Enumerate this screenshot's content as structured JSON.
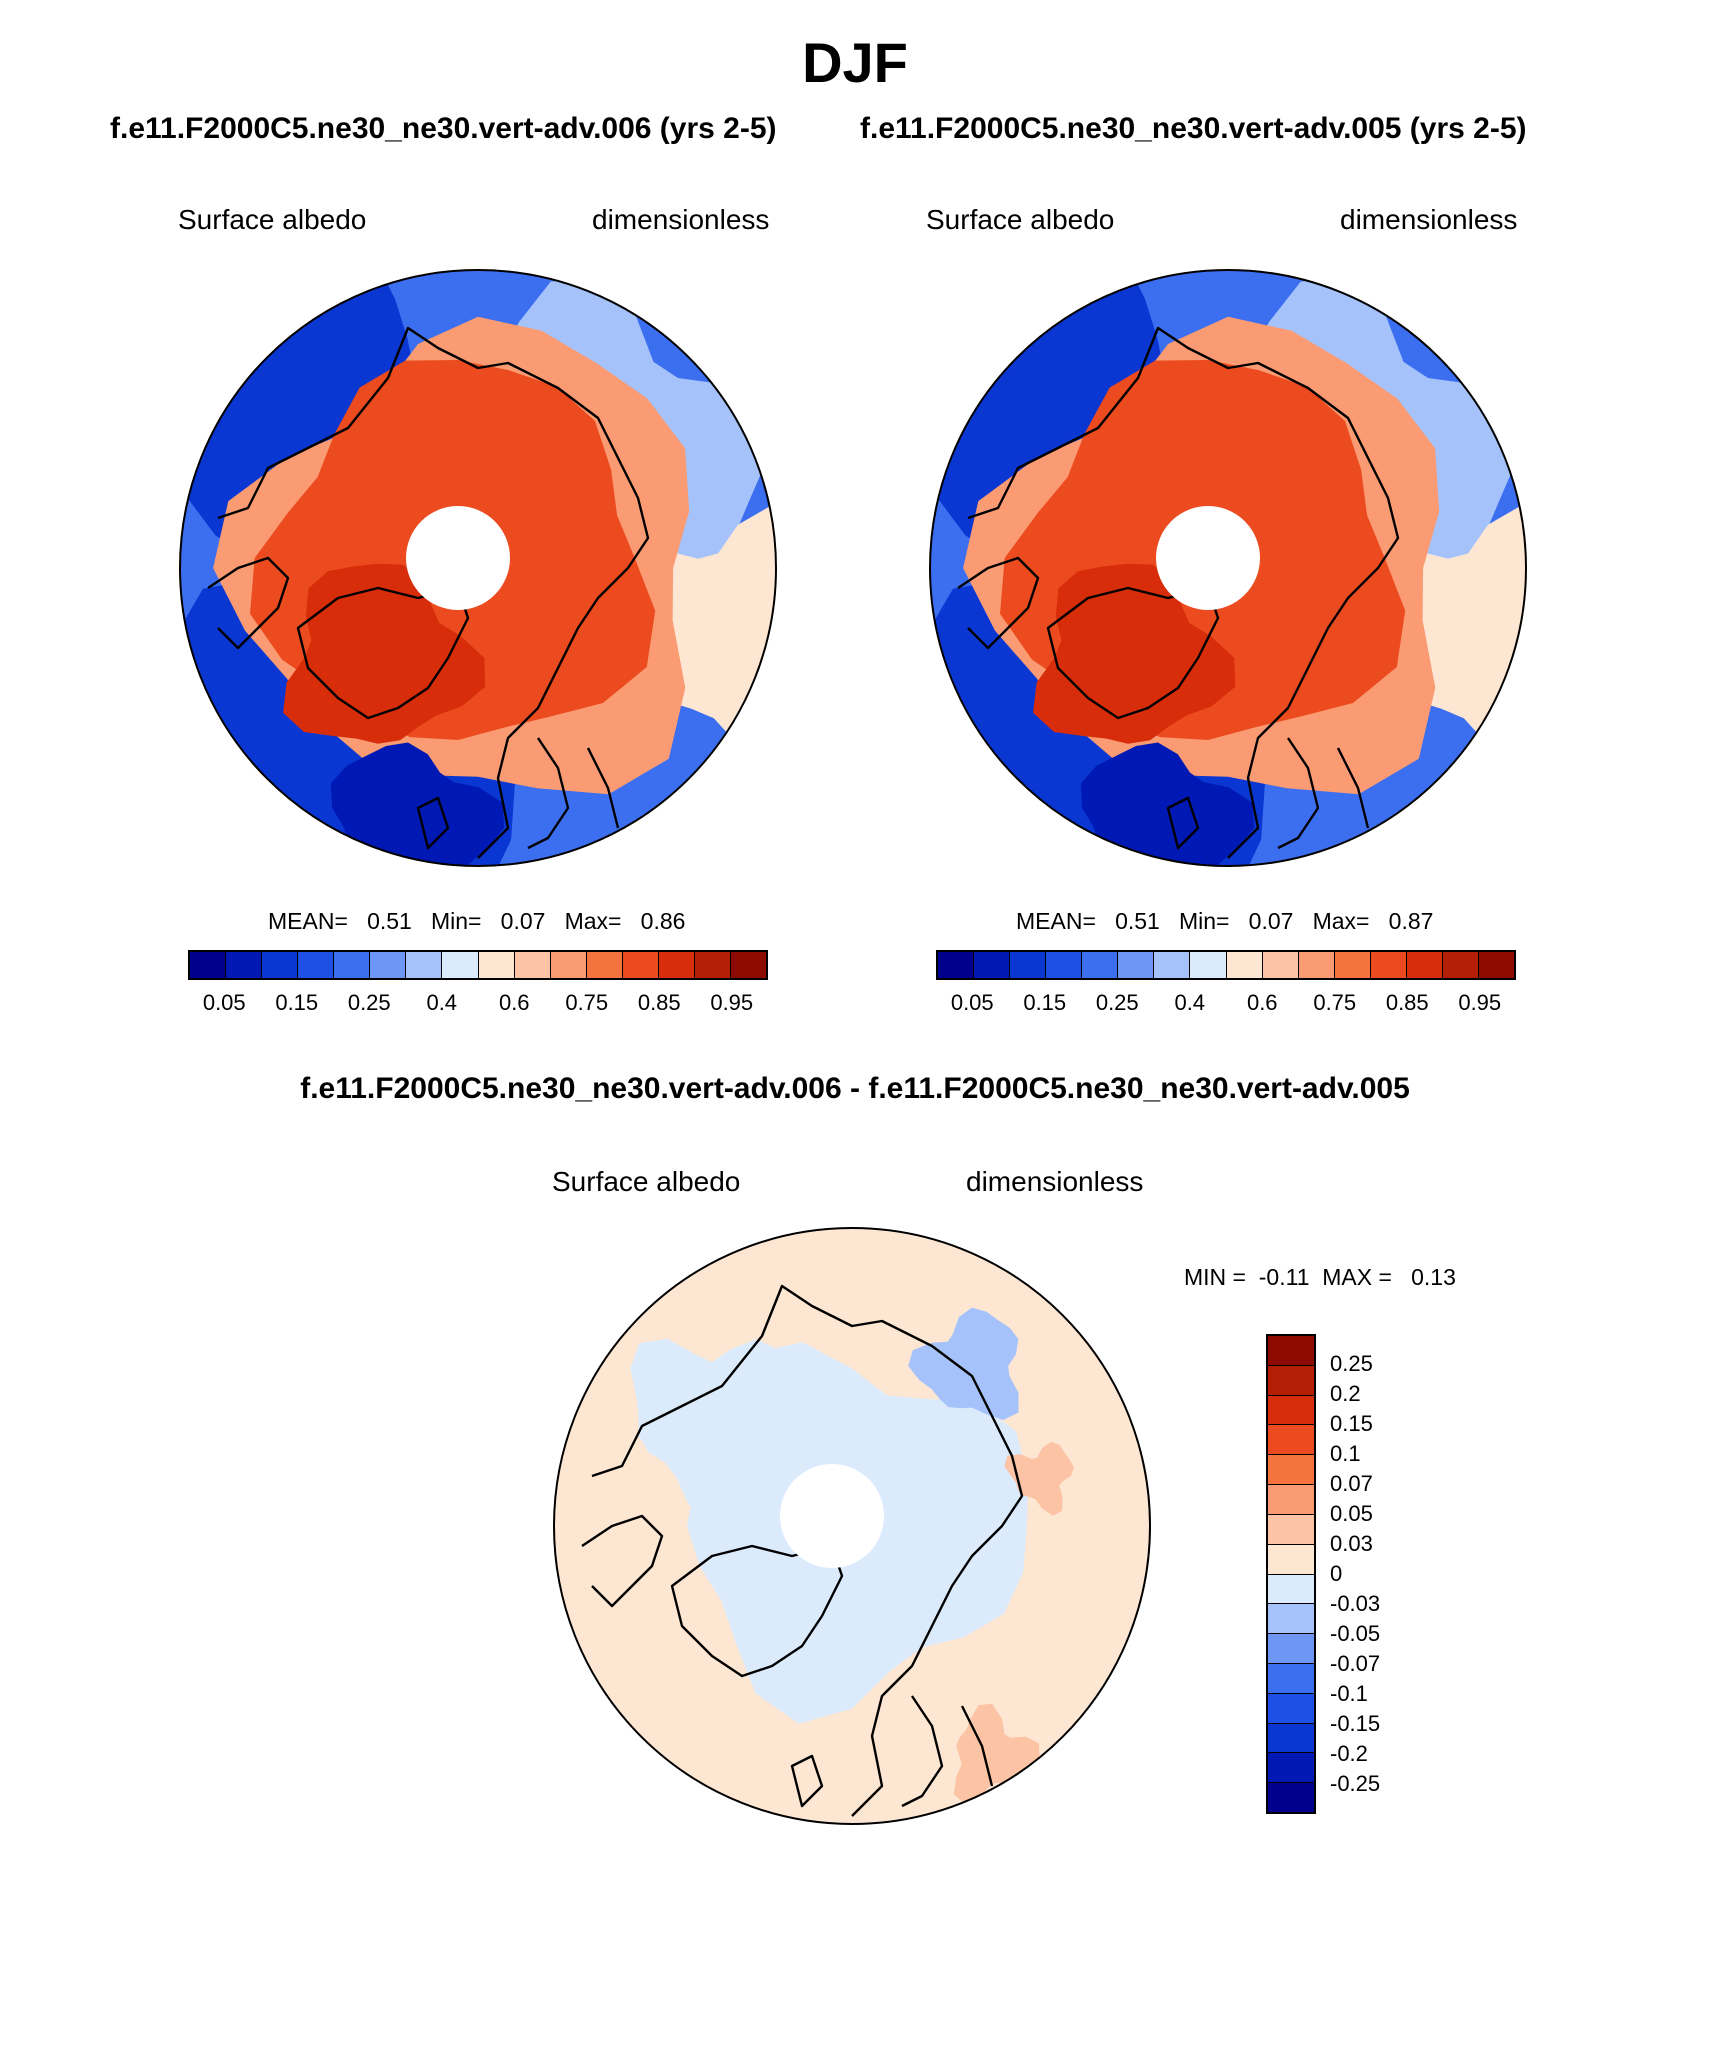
{
  "title": "DJF",
  "panels": [
    {
      "subtitle": "f.e11.F2000C5.ne30_ne30.vert-adv.006 (yrs 2-5)",
      "left_label": "Surface albedo",
      "right_label": "dimensionless",
      "stats": {
        "mean_label": "MEAN=",
        "mean": "0.51",
        "min_label": "Min=",
        "min": "0.07",
        "max_label": "Max=",
        "max": "0.86"
      },
      "colorbar": {
        "colors": [
          "#00008c",
          "#0019b4",
          "#0a37d2",
          "#1e50e6",
          "#3c6ef0",
          "#6e96f5",
          "#a5c3fa",
          "#dcebfc",
          "#fde6d2",
          "#fcc3a5",
          "#fa9b73",
          "#f5733c",
          "#eb4b1e",
          "#d72d0a",
          "#b41e05",
          "#8c0a00"
        ],
        "ticks": [
          "0.05",
          "0.15",
          "0.25",
          "0.4",
          "0.6",
          "0.75",
          "0.85",
          "0.95"
        ]
      }
    },
    {
      "subtitle": "f.e11.F2000C5.ne30_ne30.vert-adv.005 (yrs 2-5)",
      "left_label": "Surface albedo",
      "right_label": "dimensionless",
      "stats": {
        "mean_label": "MEAN=",
        "mean": "0.51",
        "min_label": "Min=",
        "min": "0.07",
        "max_label": "Max=",
        "max": "0.87"
      },
      "colorbar": {
        "colors": [
          "#00008c",
          "#0019b4",
          "#0a37d2",
          "#1e50e6",
          "#3c6ef0",
          "#6e96f5",
          "#a5c3fa",
          "#dcebfc",
          "#fde6d2",
          "#fcc3a5",
          "#fa9b73",
          "#f5733c",
          "#eb4b1e",
          "#d72d0a",
          "#b41e05",
          "#8c0a00"
        ],
        "ticks": [
          "0.05",
          "0.15",
          "0.25",
          "0.4",
          "0.6",
          "0.75",
          "0.85",
          "0.95"
        ]
      }
    }
  ],
  "diff_panel": {
    "subtitle": "f.e11.F2000C5.ne30_ne30.vert-adv.006 - f.e11.F2000C5.ne30_ne30.vert-adv.005",
    "left_label": "Surface albedo",
    "right_label": "dimensionless",
    "stats": {
      "min_label": "MIN =",
      "min": "-0.11",
      "max_label": "MAX =",
      "max": "0.13"
    },
    "colorbar": {
      "colors": [
        "#8c0a00",
        "#b41e05",
        "#d72d0a",
        "#eb4b1e",
        "#f5733c",
        "#fa9b73",
        "#fcc3a5",
        "#fde6d2",
        "#dcebfc",
        "#a5c3fa",
        "#6e96f5",
        "#3c6ef0",
        "#1e50e6",
        "#0a37d2",
        "#0019b4",
        "#00008c"
      ],
      "ticks": [
        "0.25",
        "0.2",
        "0.15",
        "0.1",
        "0.07",
        "0.05",
        "0.03",
        "0",
        "-0.03",
        "-0.05",
        "-0.07",
        "-0.1",
        "-0.15",
        "-0.2",
        "-0.25"
      ]
    }
  }
}
